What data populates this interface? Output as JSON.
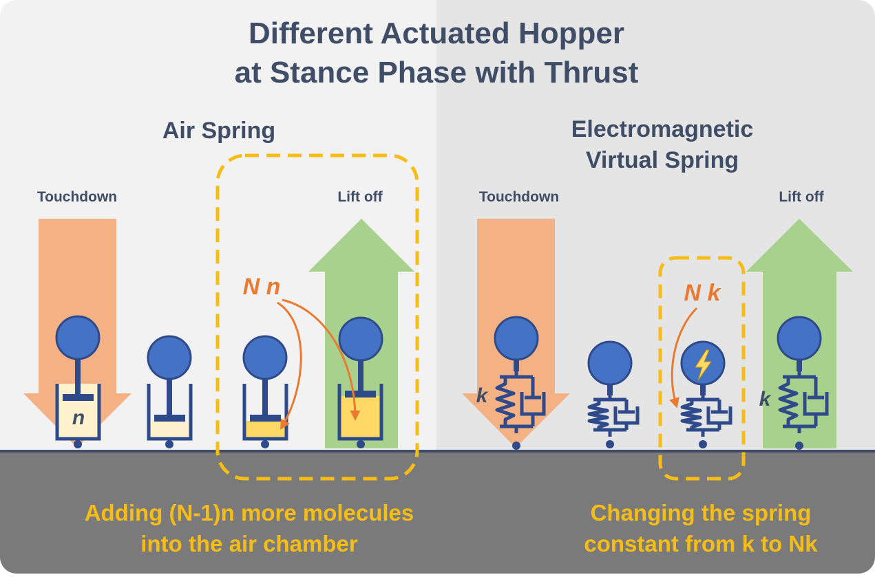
{
  "title_line1": "Different Actuated Hopper",
  "title_line2": "at Stance Phase with Thrust",
  "left": {
    "heading": "Air Spring",
    "touchdown_label": "Touchdown",
    "liftoff_label": "Lift off",
    "thrust_label": "N n",
    "molecule_label": "n",
    "caption_line1": "Adding (N-1)n more molecules",
    "caption_line2": "into the air chamber"
  },
  "right": {
    "heading_line1": "Electromagnetic",
    "heading_line2": "Virtual Spring",
    "touchdown_label": "Touchdown",
    "liftoff_label": "Lift off",
    "thrust_label": "N k",
    "spring_label_a": "k",
    "spring_label_b": "k",
    "caption_line1": "Changing the spring",
    "caption_line2": "constant from k to Nk"
  },
  "colors": {
    "left_background": "#f2f2f2",
    "right_background": "#e5e5e5",
    "ground": "#7a7a7a",
    "ground_line": "#3f4d66",
    "hopper_blue": "#4472c4",
    "hopper_outline": "#2f4a8a",
    "touchdown_arrow": "#f4b183",
    "liftoff_arrow": "#a9d18e",
    "highlight_dash": "#f7bd17",
    "thrust_orange": "#ea7a30",
    "air_light": "#fff2cc",
    "air_compressed": "#ffd966"
  },
  "icons": [
    "lightning-icon",
    "pivot-icon"
  ]
}
